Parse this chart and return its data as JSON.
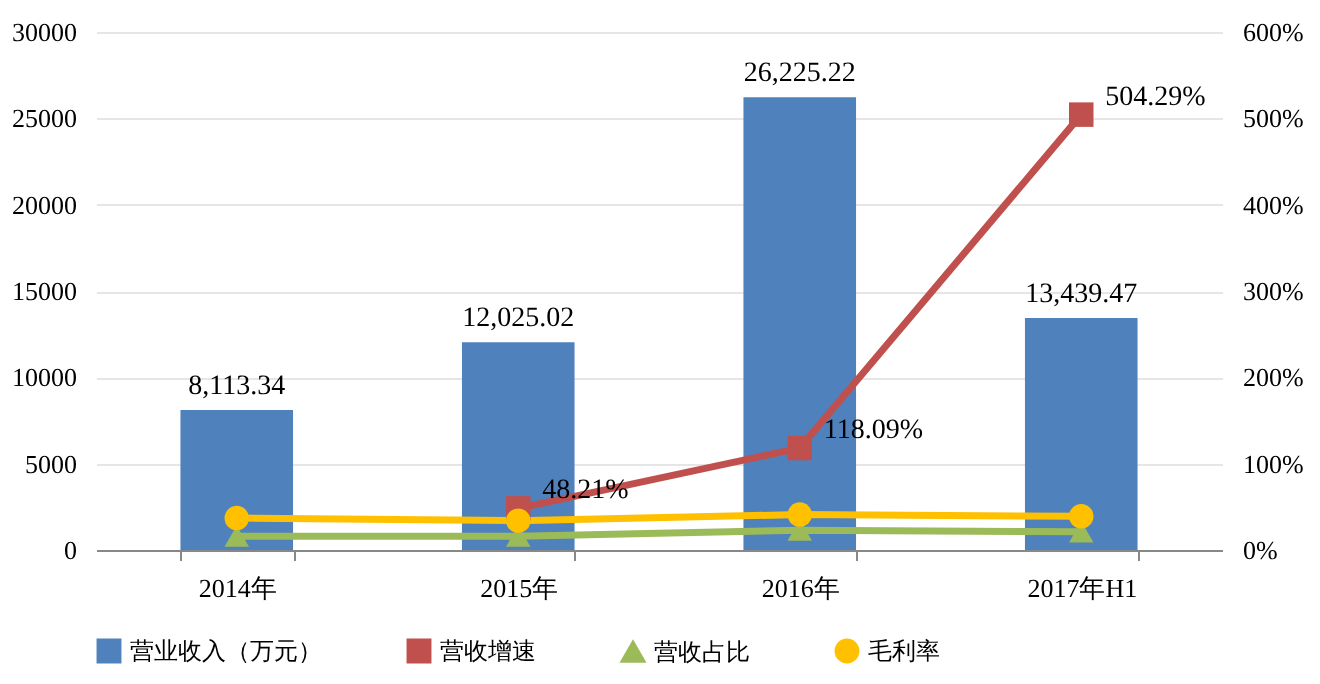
{
  "chart_data": {
    "type": "bar",
    "categories": [
      "2014年",
      "2015年",
      "2016年",
      "2017年H1"
    ],
    "series": [
      {
        "name": "营业收入（万元）",
        "color": "#4f81bd",
        "values": [
          8113.34,
          12025.02,
          26225.22,
          13439.47
        ],
        "value_labels": [
          "8,113.34",
          "12,025.02",
          "26,225.22",
          "13,439.47"
        ]
      },
      {
        "name": "营收增速",
        "type": "line",
        "axis": "y2",
        "marker": "square",
        "color": "#c0504d",
        "values": [
          null,
          48.21,
          118.09,
          504.29
        ],
        "value_labels": [
          null,
          "48.21%",
          "118.09%",
          "504.29%"
        ]
      },
      {
        "name": "营收占比",
        "type": "line",
        "axis": "y2",
        "marker": "triangle",
        "color": "#9bbb59",
        "values": [
          16,
          16,
          23,
          21
        ]
      },
      {
        "name": "毛利率",
        "type": "line",
        "axis": "y2",
        "marker": "circle",
        "color": "#ffc000",
        "values": [
          37,
          34,
          41,
          39
        ]
      }
    ],
    "ylim": [
      0,
      30000
    ],
    "yticks": [
      0,
      5000,
      10000,
      15000,
      20000,
      25000,
      30000
    ],
    "y2lim": [
      0,
      600
    ],
    "y2ticks": [
      {
        "value": 0,
        "label": "0%"
      },
      {
        "value": 100,
        "label": "100%"
      },
      {
        "value": 200,
        "label": "200%"
      },
      {
        "value": 300,
        "label": "300%"
      },
      {
        "value": 400,
        "label": "400%"
      },
      {
        "value": 500,
        "label": "500%"
      },
      {
        "value": 600,
        "label": "600%"
      }
    ],
    "grid": "y",
    "legend": "bottom"
  }
}
